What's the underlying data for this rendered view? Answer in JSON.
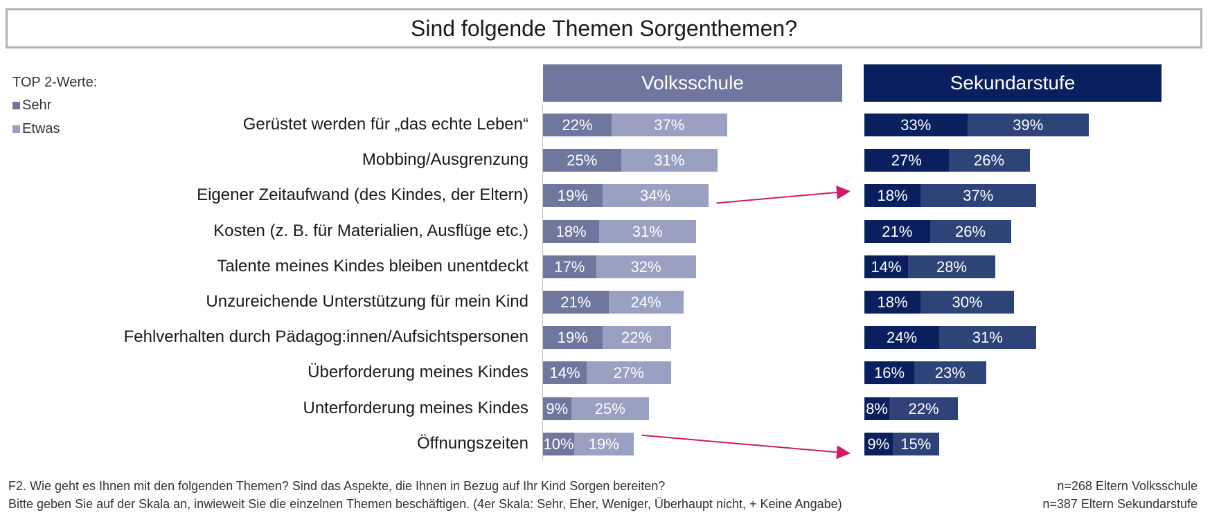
{
  "title": "Sind folgende Themen Sorgenthemen?",
  "legend": {
    "header": "TOP 2-Werte:",
    "items": [
      {
        "label": "Sehr",
        "color": "#6f779e"
      },
      {
        "label": "Etwas",
        "color": "#9aa0c2"
      }
    ]
  },
  "panels": [
    {
      "title": "Volksschule",
      "header_color": "#6f779e",
      "sehr_color": "#6f779e",
      "etwas_color": "#9aa0c2"
    },
    {
      "title": "Sekundarstufe",
      "header_color": "#0a1f5e",
      "sehr_color": "#0a1f5e",
      "etwas_color": "#2e4478"
    }
  ],
  "chart_data": {
    "type": "bar",
    "orientation": "horizontal-stacked",
    "unit": "%",
    "categories": [
      "Gerüstet werden für „das echte Leben“",
      "Mobbing/Ausgrenzung",
      "Eigener Zeitaufwand (des Kindes, der Eltern)",
      "Kosten (z. B. für Materialien, Ausflüge etc.)",
      "Talente meines Kindes bleiben unentdeckt",
      "Unzureichende Unterstützung für mein Kind",
      "Fehlverhalten durch Pädagog:innen/Aufsichtspersonen",
      "Überforderung meines Kindes",
      "Unterforderung meines Kindes",
      "Öffnungszeiten"
    ],
    "groups": [
      {
        "name": "Volksschule",
        "series": [
          {
            "name": "Sehr",
            "values": [
              22,
              25,
              19,
              18,
              17,
              21,
              19,
              14,
              9,
              10
            ]
          },
          {
            "name": "Etwas",
            "values": [
              37,
              31,
              34,
              31,
              32,
              24,
              22,
              27,
              25,
              19
            ]
          }
        ]
      },
      {
        "name": "Sekundarstufe",
        "series": [
          {
            "name": "Sehr",
            "values": [
              33,
              27,
              18,
              21,
              14,
              18,
              24,
              16,
              8,
              9
            ]
          },
          {
            "name": "Etwas",
            "values": [
              39,
              26,
              37,
              26,
              28,
              30,
              31,
              23,
              22,
              15
            ]
          }
        ]
      }
    ],
    "annotations": [
      {
        "type": "arrow",
        "from_category": "Eigener Zeitaufwand (des Kindes, der Eltern)",
        "color": "#d11a6a"
      },
      {
        "type": "arrow",
        "from_category": "Öffnungszeiten",
        "color": "#d11a6a"
      }
    ]
  },
  "footnote": {
    "line1": "F2. Wie geht es Ihnen mit den folgenden Themen? Sind das Aspekte, die Ihnen in Bezug auf Ihr Kind Sorgen bereiten?",
    "line2": "Bitte geben Sie auf der Skala an, inwieweit Sie die einzelnen Themen beschäftigen. (4er Skala: Sehr, Eher, Weniger, Überhaupt nicht, + Keine Angabe)"
  },
  "sample": {
    "line1": "n=268 Eltern Volksschule",
    "line2": "n=387 Eltern Sekundarstufe"
  }
}
